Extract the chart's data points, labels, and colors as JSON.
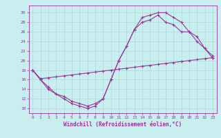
{
  "xlabel": "Windchill (Refroidissement éolien,°C)",
  "bg_color": "#c8eef0",
  "grid_color": "#b0d8d8",
  "line_color": "#993399",
  "x_ticks": [
    0,
    1,
    2,
    3,
    4,
    5,
    6,
    7,
    8,
    9,
    10,
    11,
    12,
    13,
    14,
    15,
    16,
    17,
    18,
    19,
    20,
    21,
    22,
    23
  ],
  "y_ticks": [
    10,
    12,
    14,
    16,
    18,
    20,
    22,
    24,
    26,
    28,
    30
  ],
  "xlim": [
    -0.5,
    23.5
  ],
  "ylim": [
    9.0,
    31.5
  ],
  "line1_x": [
    0,
    1,
    2,
    3,
    4,
    5,
    6,
    7,
    8,
    9,
    10,
    11,
    12,
    13,
    14,
    15,
    16,
    17,
    18,
    19,
    20,
    21,
    22,
    23
  ],
  "line1_y": [
    18,
    16,
    14,
    13,
    12,
    11,
    10.5,
    10,
    10.5,
    12,
    16,
    20,
    23,
    26.5,
    29,
    29.5,
    30,
    30,
    29,
    28,
    26,
    25,
    22.5,
    21
  ],
  "line2_x": [
    0,
    1,
    2,
    3,
    4,
    5,
    6,
    7,
    8,
    9,
    10,
    11,
    12,
    13,
    14,
    15,
    16,
    17,
    18,
    19,
    20,
    21,
    22,
    23
  ],
  "line2_y": [
    18,
    16.2,
    16.4,
    16.6,
    16.8,
    17.0,
    17.2,
    17.4,
    17.6,
    17.8,
    18.0,
    18.2,
    18.4,
    18.6,
    18.8,
    19.0,
    19.2,
    19.4,
    19.6,
    19.8,
    20.0,
    20.2,
    20.4,
    20.6
  ],
  "line3_x": [
    0,
    1,
    2,
    3,
    4,
    5,
    6,
    7,
    8,
    9,
    10,
    11,
    12,
    13,
    14,
    15,
    16,
    17,
    18,
    19,
    20,
    21,
    22,
    23
  ],
  "line3_y": [
    18,
    16,
    14.5,
    13,
    12.5,
    11.5,
    11,
    10.5,
    11,
    12,
    16,
    20,
    23,
    26.5,
    28,
    28.5,
    29.5,
    28,
    27.5,
    26,
    26,
    24,
    22.5,
    20.5
  ]
}
